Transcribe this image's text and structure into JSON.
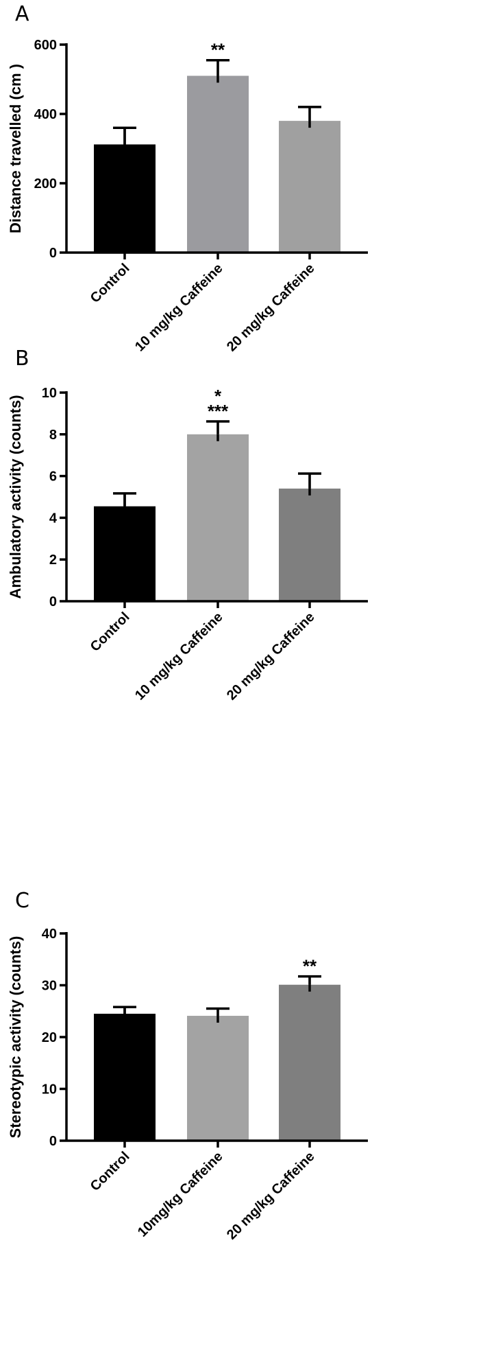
{
  "chart_data": [
    {
      "panel": "A",
      "type": "bar",
      "ylabel": "Distance travelled (cm )",
      "ylim": [
        0,
        600
      ],
      "yticks": [
        "0",
        "200",
        "400",
        "600"
      ],
      "categories": [
        "Control",
        "10 mg/kg Caffeine",
        "20 mg/kg Caffeine"
      ],
      "values": [
        312,
        510,
        380
      ],
      "errors": [
        48,
        45,
        40
      ],
      "colors": [
        "#000000",
        "#9b9b9f",
        "#a0a0a0"
      ],
      "significance": [
        "",
        "**",
        ""
      ]
    },
    {
      "panel": "B",
      "type": "bar",
      "ylabel": "Ambulatory activity (counts)",
      "ylim": [
        0,
        10
      ],
      "yticks": [
        "0",
        "2",
        "4",
        "6",
        "8",
        "10"
      ],
      "categories": [
        "Control",
        "10 mg/kg Caffeine",
        "20 mg/kg Caffeine"
      ],
      "values": [
        4.55,
        8.0,
        5.4
      ],
      "errors": [
        0.62,
        0.62,
        0.72
      ],
      "colors": [
        "#000000",
        "#a3a3a3",
        "#7f7f7f"
      ],
      "significance": [
        "",
        "*\n***",
        ""
      ]
    },
    {
      "panel": "C",
      "type": "bar",
      "ylabel": "Stereotypic activity (counts)",
      "ylim": [
        0,
        40
      ],
      "yticks": [
        "0",
        "10",
        "20",
        "30",
        "40"
      ],
      "categories": [
        "Control",
        "10mg/kg Caffeine",
        "20 mg/kg Caffeine"
      ],
      "values": [
        24.5,
        24.1,
        30.1
      ],
      "errors": [
        1.3,
        1.4,
        1.6
      ],
      "colors": [
        "#000000",
        "#a3a3a3",
        "#7f7f7f"
      ],
      "significance": [
        "",
        "",
        "**"
      ]
    }
  ]
}
